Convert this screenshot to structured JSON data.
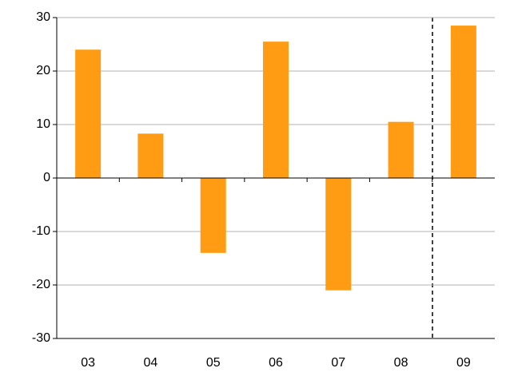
{
  "chart_data": {
    "type": "bar",
    "categories": [
      "03",
      "04",
      "05",
      "06",
      "07",
      "08",
      "09"
    ],
    "values": [
      24,
      8.3,
      -14,
      25.5,
      -21,
      10.5,
      28.5
    ],
    "color": "#ff9c14",
    "ylim": [
      -30,
      30
    ],
    "yticks": [
      -30,
      -20,
      -10,
      0,
      10,
      20,
      30
    ],
    "grid": true
  }
}
